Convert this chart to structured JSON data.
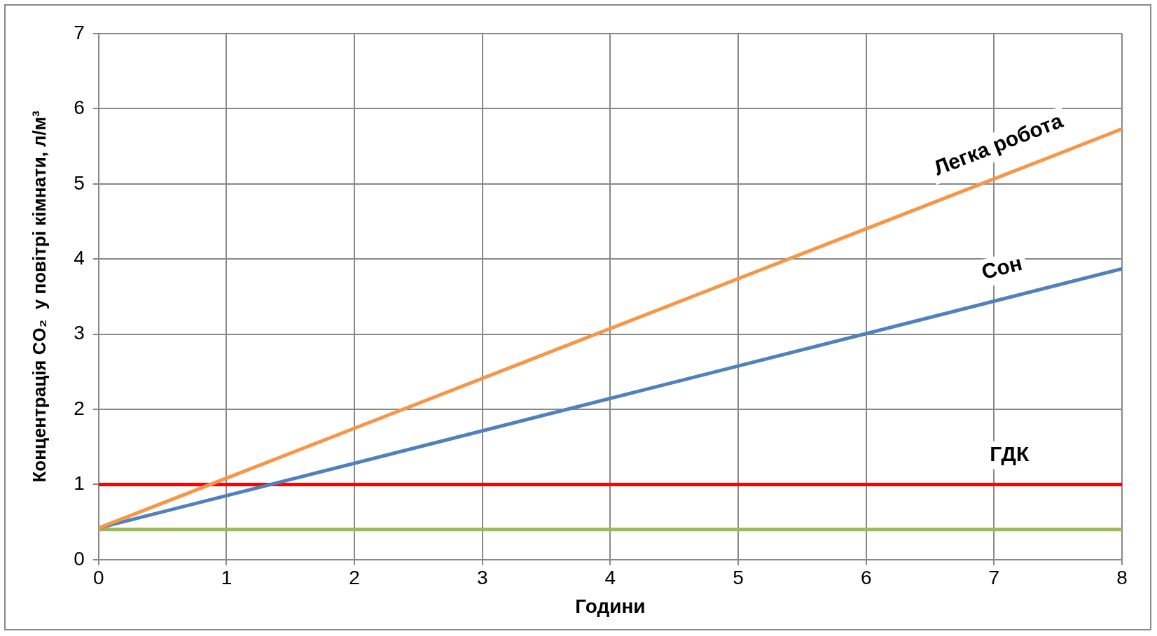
{
  "chart_data": {
    "type": "line",
    "xlabel": "Години",
    "ylabel": "Концентрація CO₂  у повітрі кімнати, л/м³",
    "x": [
      0,
      8
    ],
    "xlim": [
      0,
      8
    ],
    "xticks": [
      0,
      1,
      2,
      3,
      4,
      5,
      6,
      7,
      8
    ],
    "ylim": [
      0,
      7
    ],
    "yticks": [
      0,
      1,
      2,
      3,
      4,
      5,
      6,
      7
    ],
    "grid": true,
    "legend": false,
    "marker": "none",
    "line_style": "solid",
    "series": [
      {
        "name": "Легка робота",
        "color": "#f79646",
        "values": [
          0.42,
          5.73
        ]
      },
      {
        "name": "Сон",
        "color": "#4f81bd",
        "values": [
          0.42,
          3.87
        ]
      },
      {
        "name": "ГДК",
        "color": "#ff0000",
        "values": [
          1,
          1
        ]
      },
      {
        "color": "#9bbb59",
        "values": [
          0.4,
          0.4
        ]
      }
    ]
  }
}
